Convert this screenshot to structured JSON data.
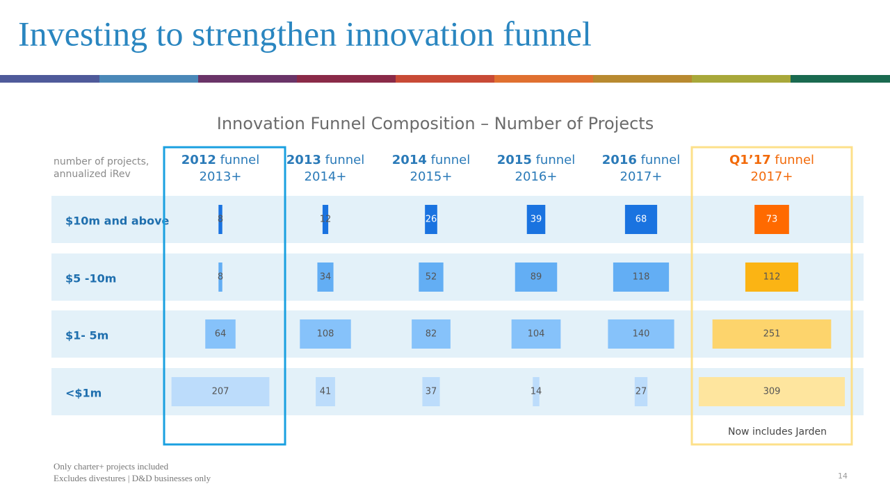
{
  "title": "Investing to strengthen innovation funnel",
  "chart_data": {
    "type": "bar-grid",
    "title": "Innovation Funnel Composition – Number of Projects",
    "axis_note": [
      "number of projects,",
      "annualized iRev"
    ],
    "categories": [
      "$10m and above",
      "$5 -10m",
      "$1- 5m",
      "<$1m"
    ],
    "series": [
      {
        "name": "2012 funnel",
        "horizon": "2013+",
        "colors": [
          "#1a73e0",
          "#63aef4",
          "#86c2fa",
          "#bcdcfb"
        ],
        "values": [
          8,
          8,
          64,
          207
        ]
      },
      {
        "name": "2013 funnel",
        "horizon": "2014+",
        "colors": [
          "#1a73e0",
          "#63aef4",
          "#86c2fa",
          "#bcdcfb"
        ],
        "values": [
          12,
          34,
          108,
          41
        ]
      },
      {
        "name": "2014 funnel",
        "horizon": "2015+",
        "colors": [
          "#1a73e0",
          "#63aef4",
          "#86c2fa",
          "#bcdcfb"
        ],
        "values": [
          26,
          52,
          82,
          37
        ]
      },
      {
        "name": "2015 funnel",
        "horizon": "2016+",
        "colors": [
          "#1a73e0",
          "#63aef4",
          "#86c2fa",
          "#bcdcfb"
        ],
        "values": [
          39,
          89,
          104,
          14
        ]
      },
      {
        "name": "2016 funnel",
        "horizon": "2017+",
        "colors": [
          "#1a73e0",
          "#63aef4",
          "#86c2fa",
          "#bcdcfb"
        ],
        "values": [
          68,
          118,
          140,
          27
        ]
      },
      {
        "name": "Q1’17 funnel",
        "horizon": "2017+",
        "colors": [
          "#ff6a00",
          "#fbb414",
          "#fdd46c",
          "#fee59e"
        ],
        "values": [
          73,
          112,
          251,
          309
        ]
      }
    ],
    "annotation": "Now includes Jarden"
  },
  "footnotes": [
    "Only charter+ projects included",
    "Excludes divestures | D&D businesses only"
  ],
  "page_number": "14"
}
